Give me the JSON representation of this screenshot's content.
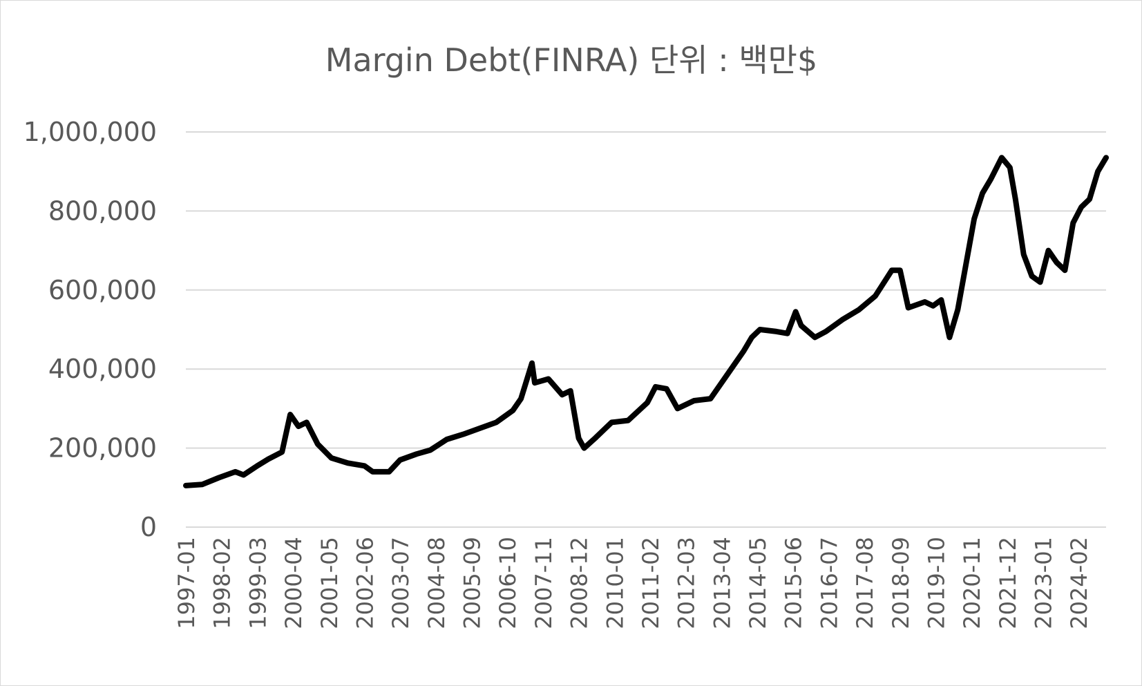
{
  "chart_data": {
    "type": "line",
    "title": "Margin Debt(FINRA) 단위 : 백만$",
    "xlabel": "",
    "ylabel": "",
    "ylim": [
      0,
      1000000
    ],
    "yticks": [
      0,
      200000,
      400000,
      600000,
      800000,
      1000000
    ],
    "ytick_labels": [
      "0",
      "200,000",
      "400,000",
      "600,000",
      "800,000",
      "1,000,000"
    ],
    "xtick_labels": [
      "1997-01",
      "1998-02",
      "1999-03",
      "2000-04",
      "2001-05",
      "2002-06",
      "2003-07",
      "2004-08",
      "2005-09",
      "2006-10",
      "2007-11",
      "2008-12",
      "2010-01",
      "2011-02",
      "2012-03",
      "2013-04",
      "2014-05",
      "2015-06",
      "2016-07",
      "2017-08",
      "2018-09",
      "2019-10",
      "2020-11",
      "2021-12",
      "2023-01",
      "2024-02"
    ],
    "x_range": [
      "1997-01",
      "2024-12"
    ],
    "grid": true,
    "legend": "none",
    "line_color": "#000000",
    "grid_color": "#d9d9d9",
    "series": [
      {
        "x": [
          "1997-01",
          "1997-07",
          "1998-01",
          "1998-07",
          "1998-10",
          "1999-03",
          "1999-07",
          "1999-12",
          "2000-03",
          "2000-06",
          "2000-09",
          "2001-01",
          "2001-06",
          "2001-12",
          "2002-06",
          "2002-09",
          "2003-03",
          "2003-07",
          "2004-01",
          "2004-06",
          "2004-12",
          "2005-06",
          "2005-12",
          "2006-06",
          "2006-12",
          "2007-03",
          "2007-07",
          "2007-08",
          "2008-01",
          "2008-06",
          "2008-09",
          "2008-12",
          "2009-02",
          "2009-06",
          "2009-12",
          "2010-06",
          "2011-01",
          "2011-04",
          "2011-08",
          "2011-12",
          "2012-06",
          "2012-12",
          "2013-06",
          "2013-12",
          "2014-03",
          "2014-06",
          "2014-12",
          "2015-04",
          "2015-07",
          "2015-09",
          "2016-02",
          "2016-06",
          "2016-12",
          "2017-06",
          "2017-12",
          "2018-06",
          "2018-09",
          "2018-12",
          "2019-06",
          "2019-09",
          "2019-12",
          "2020-03",
          "2020-06",
          "2020-12",
          "2021-03",
          "2021-06",
          "2021-10",
          "2022-01",
          "2022-03",
          "2022-06",
          "2022-09",
          "2022-12",
          "2023-03",
          "2023-06",
          "2023-09",
          "2023-12",
          "2024-03",
          "2024-06",
          "2024-09",
          "2024-12"
        ],
        "values": [
          105000,
          108000,
          125000,
          140000,
          132000,
          155000,
          172000,
          190000,
          285000,
          255000,
          265000,
          210000,
          175000,
          162000,
          155000,
          140000,
          140000,
          170000,
          185000,
          195000,
          222000,
          235000,
          250000,
          265000,
          295000,
          325000,
          415000,
          365000,
          375000,
          335000,
          345000,
          225000,
          200000,
          225000,
          265000,
          270000,
          315000,
          355000,
          350000,
          300000,
          320000,
          325000,
          385000,
          445000,
          480000,
          500000,
          495000,
          490000,
          545000,
          510000,
          480000,
          495000,
          525000,
          550000,
          585000,
          650000,
          650000,
          555000,
          570000,
          560000,
          575000,
          480000,
          550000,
          780000,
          845000,
          880000,
          935000,
          910000,
          830000,
          690000,
          635000,
          620000,
          700000,
          670000,
          650000,
          770000,
          810000,
          830000,
          900000,
          935000
        ]
      }
    ]
  }
}
